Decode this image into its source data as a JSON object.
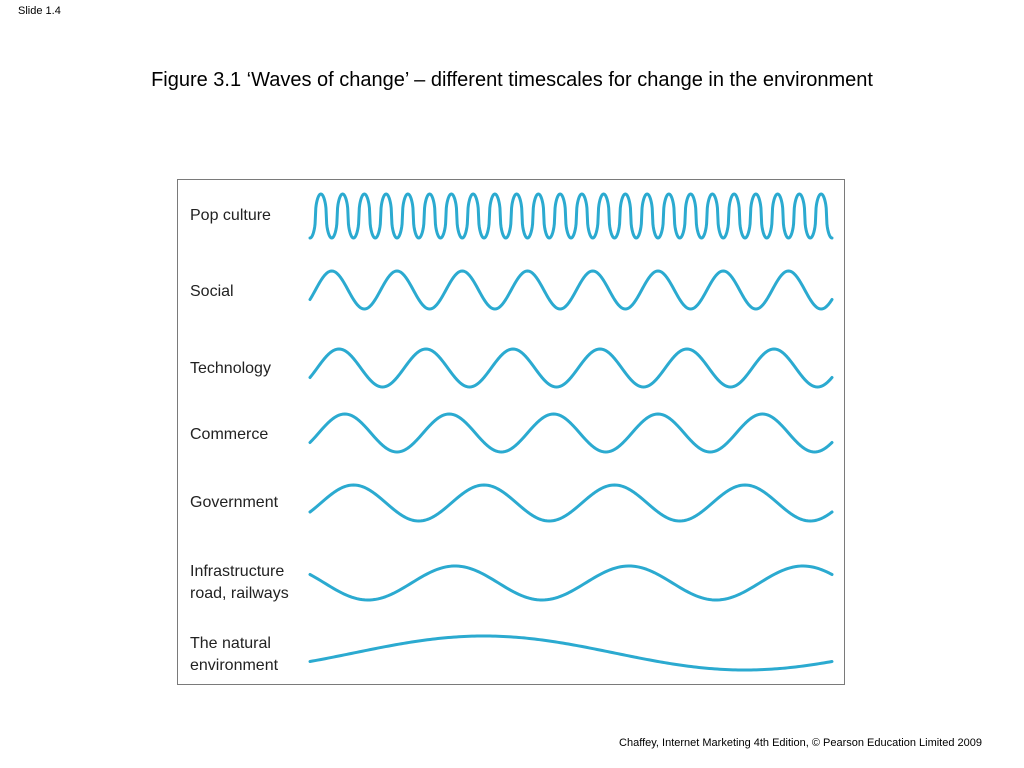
{
  "slide": {
    "number_label": "Slide 1.4"
  },
  "figure": {
    "title": "Figure 3.1  ‘Waves of change’ – different timescales for change in the environment",
    "wave_color": "#2BAAD0",
    "rows": [
      {
        "label": "Pop culture",
        "cycles": 24,
        "phase": "rising"
      },
      {
        "label": "Social",
        "cycles": 8,
        "phase": "rising"
      },
      {
        "label": "Technology",
        "cycles": 6,
        "phase": "rising"
      },
      {
        "label": "Commerce",
        "cycles": 5,
        "phase": "rising"
      },
      {
        "label": "Government",
        "cycles": 4,
        "phase": "rising"
      },
      {
        "label": "Infrastructure\nroad, railways",
        "cycles": 3,
        "phase": "falling"
      },
      {
        "label": "The natural\nenvironment",
        "cycles": 1,
        "phase": "rising"
      }
    ]
  },
  "footer": {
    "credit": "Chaffey, Internet Marketing 4th Edition, © Pearson Education Limited 2009"
  }
}
